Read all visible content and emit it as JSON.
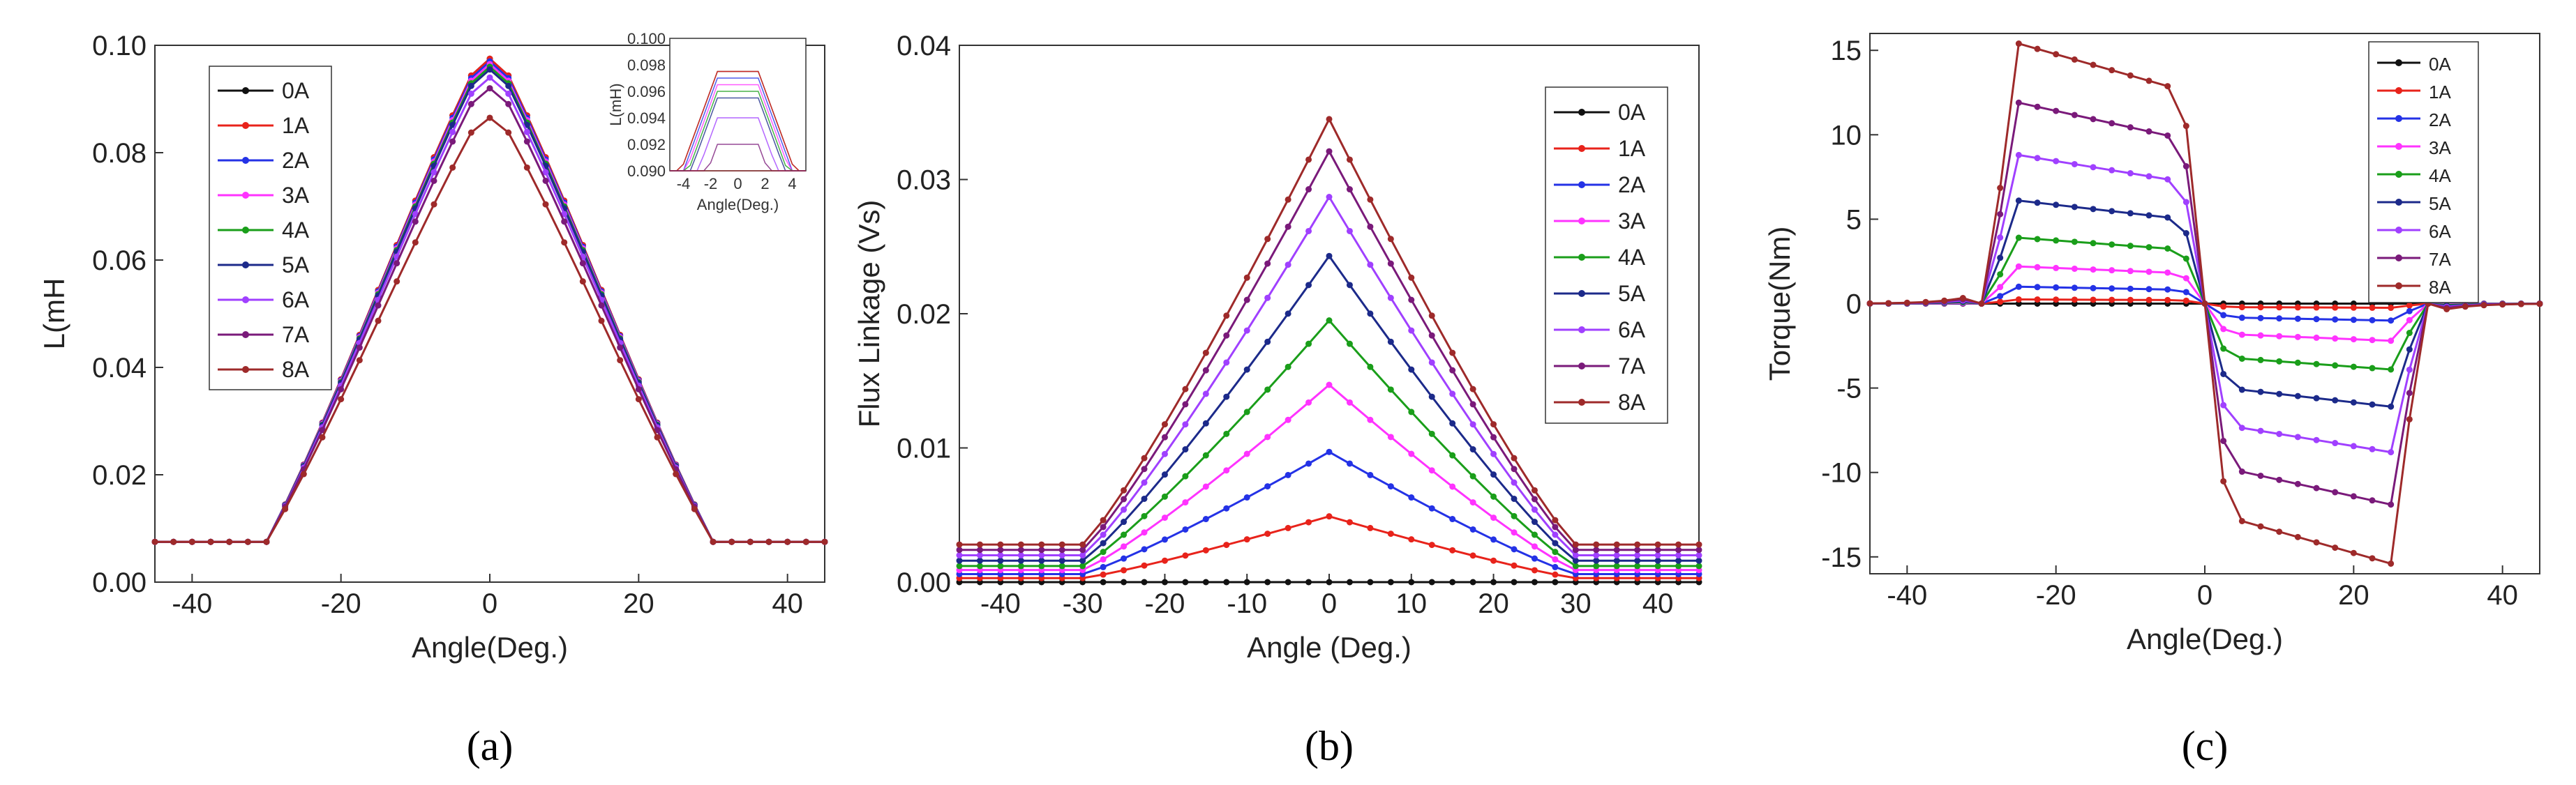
{
  "legend": [
    "0A",
    "1A",
    "2A",
    "3A",
    "4A",
    "5A",
    "6A",
    "7A",
    "8A"
  ],
  "colors": [
    "#111111",
    "#e8231b",
    "#2432e6",
    "#ff33ff",
    "#1a9e1a",
    "#1c2a8a",
    "#a040ff",
    "#7a1a7a",
    "#9e2a2a"
  ],
  "chart_data": [
    {
      "type": "line",
      "caption": "(a)",
      "xlabel": "Angle(Deg.)",
      "ylabel": "L(mH",
      "xlim": [
        -45,
        45
      ],
      "ylim": [
        0.0,
        0.1
      ],
      "xticks": [
        -40,
        -20,
        0,
        20,
        40
      ],
      "yticks": [
        0.0,
        0.02,
        0.04,
        0.06,
        0.08,
        0.1
      ],
      "ytick_labels": [
        "0.00",
        "0.02",
        "0.04",
        "0.06",
        "0.08",
        "0.10"
      ],
      "legend_position": "top-left",
      "description_x_step": 2,
      "series_peaks_mH": [
        0.0975,
        0.0975,
        0.097,
        0.0965,
        0.096,
        0.0955,
        0.094,
        0.092,
        0.0865
      ],
      "floor_mH": 0.0075,
      "inset": {
        "ylabel": "L(mH)",
        "xlabel": "Angle(Deg.)",
        "xlim": [
          -5,
          5
        ],
        "ylim": [
          0.09,
          0.1
        ],
        "xticks": [
          -4,
          -2,
          0,
          2,
          4
        ],
        "yticks": [
          0.09,
          0.092,
          0.094,
          0.096,
          0.098,
          0.1
        ],
        "ytick_labels": [
          "0.090",
          "0.092",
          "0.094",
          "0.096",
          "0.098",
          "0.100"
        ]
      }
    },
    {
      "type": "line",
      "caption": "(b)",
      "xlabel": "Angle (Deg.)",
      "ylabel": "Flux Linkage (Vs)",
      "xlim": [
        -45,
        45
      ],
      "ylim": [
        0.0,
        0.04
      ],
      "xticks": [
        -40,
        -30,
        -20,
        -10,
        0,
        10,
        20,
        30,
        40
      ],
      "yticks": [
        0.0,
        0.01,
        0.02,
        0.03,
        0.04
      ],
      "ytick_labels": [
        "0.00",
        "0.01",
        "0.02",
        "0.03",
        "0.04"
      ],
      "legend_position": "top-right",
      "series_peaks_Vs": [
        0.0,
        0.0049,
        0.0097,
        0.0147,
        0.0195,
        0.0243,
        0.0287,
        0.0321,
        0.0345
      ],
      "series_floors_Vs": [
        0.0,
        0.0003,
        0.0006,
        0.0009,
        0.0012,
        0.0016,
        0.002,
        0.0024,
        0.0028
      ]
    },
    {
      "type": "line",
      "caption": "(c)",
      "xlabel": "Angle(Deg.)",
      "ylabel": "Torque(Nm)",
      "xlim": [
        -45,
        45
      ],
      "ylim": [
        -16,
        16
      ],
      "xticks": [
        -40,
        -20,
        0,
        20,
        40
      ],
      "yticks": [
        -15,
        -10,
        -5,
        0,
        5,
        10,
        15
      ],
      "ytick_labels": [
        "-15",
        "-10",
        "-5",
        "0",
        "5",
        "10",
        "15"
      ],
      "legend_position": "top-right",
      "series_plateau_Nm": [
        0.0,
        0.25,
        1.0,
        2.2,
        3.9,
        6.1,
        8.8,
        11.9,
        15.4
      ]
    }
  ]
}
